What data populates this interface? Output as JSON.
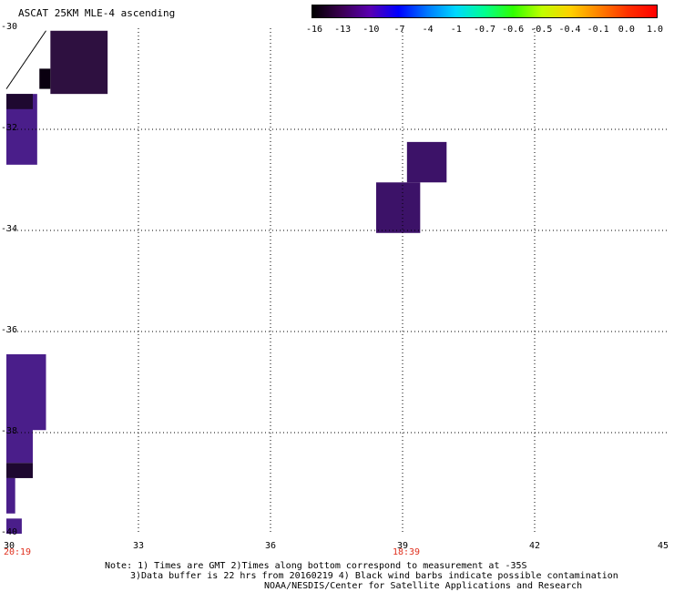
{
  "title": "ASCAT 25KM MLE-4 ascending",
  "colorbar": {
    "labels": [
      "-16",
      "-13",
      "-10",
      "-7",
      "-4",
      "-1",
      "-0.7",
      "-0.6",
      "-0.5",
      "-0.4",
      "-0.1",
      "0.0",
      "1.0"
    ],
    "colors": [
      "#000000",
      "#3a0050",
      "#5a00b0",
      "#0000ff",
      "#0078ff",
      "#00d8ff",
      "#00ff90",
      "#30ff00",
      "#c0ff00",
      "#ffd000",
      "#ff8000",
      "#ff3000",
      "#ff0000"
    ]
  },
  "axes": {
    "y_labels": [
      "-30",
      "-32",
      "-34",
      "-36",
      "-38",
      "-40"
    ],
    "x_labels": [
      "30",
      "33",
      "36",
      "39",
      "42",
      "45"
    ]
  },
  "times": [
    "20:19",
    "18:39"
  ],
  "notes": {
    "line1": "Note: 1) Times are GMT 2)Times along bottom correspond to measurement at -35S",
    "line2": "3)Data buffer is 22 hrs from 20160219 4) Black wind barbs indicate possible contamination",
    "line3": "NOAA/NESDIS/Center for Satellite Applications and Research"
  },
  "map_data": {
    "region": {
      "lon": [
        30,
        45
      ],
      "lat": [
        -40,
        -30
      ]
    },
    "cells": [
      {
        "lon0": 31.0,
        "lon1": 32.3,
        "lat0": -30.05,
        "lat1": -31.3,
        "color": "#2e1040"
      },
      {
        "lon0": 30.75,
        "lon1": 31.0,
        "lat0": -30.8,
        "lat1": -31.2,
        "color": "#0a0010"
      },
      {
        "lon0": 30.0,
        "lon1": 30.7,
        "lat0": -31.3,
        "lat1": -32.7,
        "color": "#4a1e8a"
      },
      {
        "lon0": 30.0,
        "lon1": 30.6,
        "lat0": -31.3,
        "lat1": -31.6,
        "color": "#1e0830"
      },
      {
        "lon0": 39.1,
        "lon1": 40.0,
        "lat0": -32.25,
        "lat1": -33.05,
        "color": "#3c1268"
      },
      {
        "lon0": 38.4,
        "lon1": 39.4,
        "lat0": -33.05,
        "lat1": -34.05,
        "color": "#3c1268"
      },
      {
        "lon0": 30.0,
        "lon1": 30.9,
        "lat0": -36.45,
        "lat1": -37.95,
        "color": "#4a1e8a"
      },
      {
        "lon0": 30.0,
        "lon1": 30.6,
        "lat0": -37.9,
        "lat1": -38.6,
        "color": "#4a1e8a"
      },
      {
        "lon0": 30.0,
        "lon1": 30.6,
        "lat0": -38.6,
        "lat1": -38.9,
        "color": "#1e0830"
      },
      {
        "lon0": 30.0,
        "lon1": 30.2,
        "lat0": -38.9,
        "lat1": -39.6,
        "color": "#4a1e8a"
      },
      {
        "lon0": 30.0,
        "lon1": 30.35,
        "lat0": -39.7,
        "lat1": -40.0,
        "color": "#4a1e8a"
      }
    ],
    "barbs": [
      {
        "lon0": 30.0,
        "lat0": -31.2,
        "lon1": 30.9,
        "lat1": -30.05
      }
    ]
  }
}
